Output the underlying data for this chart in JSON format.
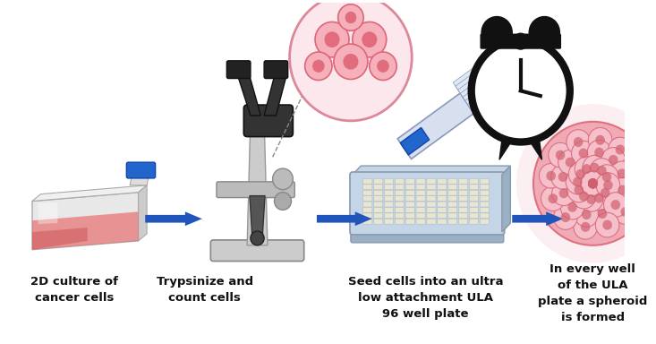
{
  "background_color": "#ffffff",
  "labels": [
    "2D culture of\ncancer cells",
    "Trypsinize and\ncount cells",
    "Seed cells into an ultra\nlow attachment ULA\n96 well plate",
    "In every well\nof the ULA\nplate a spheroid\nis formed"
  ],
  "arrow_color": "#2255bb",
  "label_fontsize": 9.5,
  "label_fontweight": "bold",
  "label_color": "#111111",
  "pink_light": "#f5c5cc",
  "pink_dark": "#d9606e",
  "pink_medium": "#f0aab5",
  "gray_light": "#d8d8d8",
  "blue_cap": "#2266cc",
  "black": "#111111",
  "white": "#ffffff",
  "cream": "#eeeedd"
}
